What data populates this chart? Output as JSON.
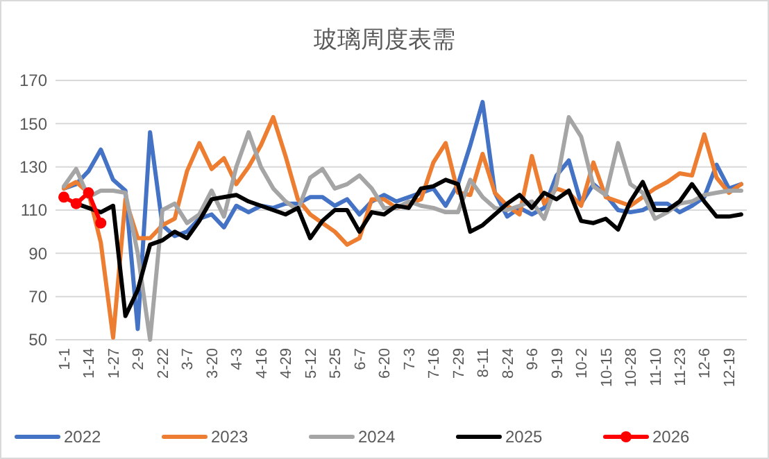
{
  "chart_data": {
    "type": "line",
    "title": "玻璃周度表需",
    "categories": [
      "1-1",
      null,
      "1-14",
      null,
      "1-27",
      null,
      "2-9",
      null,
      "2-22",
      null,
      "3-7",
      null,
      "3-20",
      null,
      "4-3",
      null,
      "4-16",
      null,
      "4-29",
      null,
      "5-12",
      null,
      "5-25",
      null,
      "6-7",
      null,
      "6-20",
      null,
      "7-3",
      null,
      "7-16",
      null,
      "7-29",
      null,
      "8-11",
      null,
      "8-24",
      null,
      "9-6",
      null,
      "9-19",
      null,
      "10-2",
      null,
      "10-15",
      null,
      "10-28",
      null,
      "11-10",
      null,
      "11-23",
      null,
      "12-6",
      null,
      "12-19",
      null
    ],
    "ylim": [
      50,
      170
    ],
    "yticks": [
      50,
      70,
      90,
      110,
      130,
      150,
      170
    ],
    "grid": "y",
    "legend": "bottom",
    "line_style": "solid",
    "series": [
      {
        "name": "2022",
        "color": "#4472c4",
        "values": [
          120,
          122,
          128,
          138,
          124,
          119,
          55,
          146,
          103,
          98,
          100,
          106,
          108,
          102,
          112,
          109,
          112,
          111,
          113,
          113,
          116,
          116,
          112,
          115,
          108,
          114,
          117,
          114,
          116,
          118,
          120,
          112,
          122,
          140,
          160,
          118,
          107,
          111,
          108,
          111,
          126,
          133,
          113,
          122,
          117,
          110,
          109,
          110,
          113,
          113,
          109,
          112,
          116,
          131,
          120,
          122
        ]
      },
      {
        "name": "2023",
        "color": "#ed7d31",
        "values": [
          120,
          123,
          118,
          95,
          51,
          115,
          97,
          97,
          103,
          106,
          128,
          141,
          129,
          134,
          122,
          130,
          140,
          153,
          135,
          115,
          108,
          104,
          100,
          94,
          97,
          115,
          115,
          111,
          113,
          115,
          132,
          141,
          118,
          117,
          136,
          118,
          112,
          108,
          135,
          113,
          120,
          118,
          112,
          132,
          116,
          114,
          112,
          116,
          120,
          123,
          127,
          126,
          145,
          125,
          118,
          122
        ]
      },
      {
        "name": "2024",
        "color": "#a5a5a5",
        "values": [
          121,
          129,
          116,
          119,
          119,
          118,
          90,
          50,
          110,
          113,
          104,
          108,
          119,
          107,
          130,
          146,
          130,
          120,
          114,
          110,
          125,
          129,
          120,
          122,
          126,
          120,
          111,
          111,
          114,
          112,
          111,
          109,
          109,
          124,
          116,
          111,
          110,
          112,
          114,
          106,
          122,
          153,
          144,
          121,
          117,
          141,
          122,
          118,
          106,
          109,
          113,
          114,
          117,
          118,
          119,
          119
        ]
      },
      {
        "name": "2025",
        "color": "#000000",
        "values": [
          null,
          113,
          111,
          109,
          112,
          61,
          73,
          94,
          96,
          100,
          97,
          105,
          115,
          116,
          117,
          114,
          112,
          110,
          108,
          111,
          97,
          105,
          110,
          110,
          100,
          109,
          108,
          112,
          111,
          120,
          121,
          124,
          122,
          100,
          103,
          108,
          113,
          117,
          111,
          118,
          115,
          119,
          105,
          104,
          106,
          101,
          114,
          123,
          110,
          110,
          114,
          122,
          114,
          107,
          107,
          108
        ]
      },
      {
        "name": "2026",
        "color": "#ff0000",
        "marker": "circle",
        "values": [
          116,
          113,
          118,
          104,
          null,
          null,
          null,
          null,
          null,
          null,
          null,
          null,
          null,
          null,
          null,
          null,
          null,
          null,
          null,
          null,
          null,
          null,
          null,
          null,
          null,
          null,
          null,
          null,
          null,
          null,
          null,
          null,
          null,
          null,
          null,
          null,
          null,
          null,
          null,
          null,
          null,
          null,
          null,
          null,
          null,
          null,
          null,
          null,
          null,
          null,
          null,
          null,
          null,
          null,
          null,
          null
        ]
      }
    ]
  }
}
